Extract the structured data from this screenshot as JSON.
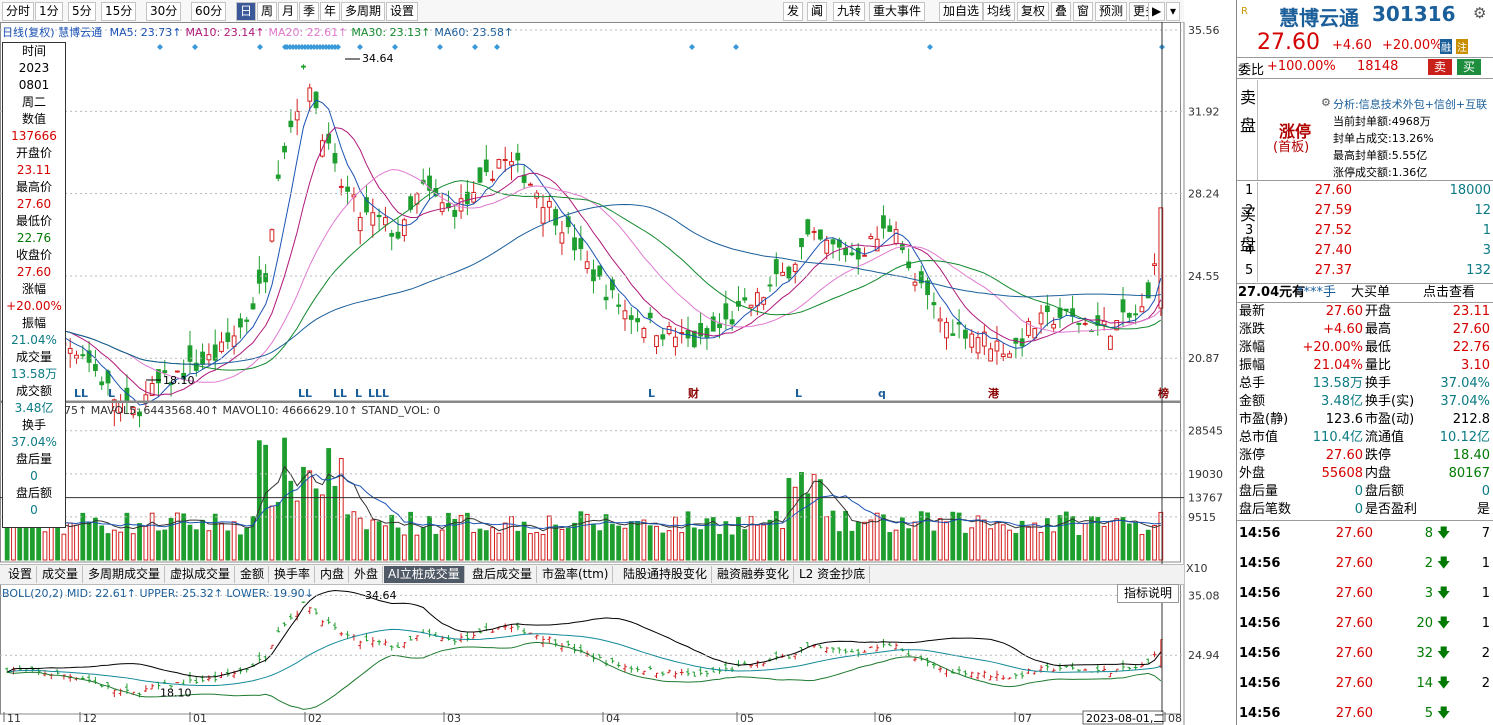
{
  "toolbar": {
    "left": [
      "分时",
      "1分",
      "5分",
      "15分",
      "30分",
      "60分",
      "日",
      "周",
      "月",
      "季",
      "年",
      "多周期",
      "设置"
    ],
    "right": [
      "发",
      "阗",
      "九转",
      "重大事件",
      "加自选",
      "均线",
      "复权",
      "叠",
      "窗",
      "预测",
      "更多"
    ]
  },
  "ma_legend": {
    "label": "日线(复权)",
    "stock": "慧博云通",
    "items": [
      {
        "text": "MA5: 23.73↑",
        "color": "#1a52b3"
      },
      {
        "text": "MA10: 23.14↑",
        "color": "#b0187a"
      },
      {
        "text": "MA20: 22.61↑",
        "color": "#e07ad0"
      },
      {
        "text": "MA30: 23.13↑",
        "color": "#138a2e"
      },
      {
        "text": "MA60: 23.58↑",
        "color": "#1b5f9a"
      }
    ]
  },
  "vol_legend": "75↑ MAVOL5: 6443568.40↑ MAVOL10: 4666629.10↑ STAND_VOL: 0",
  "boll_legend": "BOLL(20,2) MID: 22.61↑ UPPER: 25.32↑ LOWER: 19.90↓",
  "chart_data": [
    {
      "type": "candlestick",
      "title": "日线(复权) 慧博云通",
      "y_axis_ticks": [
        "35.56",
        "31.92",
        "28.24",
        "24.55",
        "20.87"
      ],
      "ylim": [
        19.0,
        35.56
      ],
      "x_axis_ticks": [
        "11",
        "12",
        "01",
        "02",
        "03",
        "04",
        "05",
        "06",
        "07",
        "08"
      ],
      "annotations": [
        "34.64",
        "18.10"
      ],
      "markers": [
        "LL",
        "L",
        "LL",
        "LL",
        "L",
        "LLL",
        "L",
        "财",
        "L",
        "q",
        "港",
        "榜"
      ],
      "last": {
        "date": "2023-08-01",
        "open": 23.11,
        "high": 27.6,
        "low": 22.76,
        "close": 27.6
      }
    },
    {
      "type": "bar",
      "title": "成交量",
      "y_axis_ticks": [
        "28545",
        "19030",
        "13767",
        "9515"
      ],
      "unit_label": "X10"
    },
    {
      "type": "line",
      "title": "BOLL(20,2)",
      "y_axis_ticks": [
        "35.08",
        "24.94"
      ],
      "series": [
        {
          "name": "MID",
          "last": 22.61
        },
        {
          "name": "UPPER",
          "last": 25.32
        },
        {
          "name": "LOWER",
          "last": 19.9
        }
      ],
      "annotations": [
        "34.64",
        "18.10"
      ],
      "x_axis_ticks": [
        "11",
        "12",
        "01",
        "02",
        "03",
        "04",
        "05",
        "06",
        "07",
        "08"
      ],
      "date_label": "2023-08-01,二"
    }
  ],
  "infobox": [
    {
      "t": "时间",
      "c": ""
    },
    {
      "t": "2023",
      "c": ""
    },
    {
      "t": "0801",
      "c": ""
    },
    {
      "t": "周二",
      "c": ""
    },
    {
      "t": "数值",
      "c": ""
    },
    {
      "t": "137666",
      "c": "red"
    },
    {
      "t": "开盘价",
      "c": ""
    },
    {
      "t": "23.11",
      "c": "red"
    },
    {
      "t": "最高价",
      "c": ""
    },
    {
      "t": "27.60",
      "c": "red"
    },
    {
      "t": "最低价",
      "c": ""
    },
    {
      "t": "22.76",
      "c": "green"
    },
    {
      "t": "收盘价",
      "c": ""
    },
    {
      "t": "27.60",
      "c": "red"
    },
    {
      "t": "涨幅",
      "c": ""
    },
    {
      "t": "+20.00%",
      "c": "red"
    },
    {
      "t": "振幅",
      "c": ""
    },
    {
      "t": "21.04%",
      "c": "teal"
    },
    {
      "t": "成交量",
      "c": ""
    },
    {
      "t": "13.58万",
      "c": "teal"
    },
    {
      "t": "成交额",
      "c": ""
    },
    {
      "t": "3.48亿",
      "c": "teal"
    },
    {
      "t": "换手",
      "c": ""
    },
    {
      "t": "37.04%",
      "c": "teal"
    },
    {
      "t": "盘后量",
      "c": ""
    },
    {
      "t": "0",
      "c": "teal"
    },
    {
      "t": "盘后额",
      "c": ""
    },
    {
      "t": "0",
      "c": "teal"
    }
  ],
  "tabs": [
    "设置",
    "成交量",
    "多周期成交量",
    "虚拟成交量",
    "金额",
    "换手率",
    "内盘",
    "外盘",
    "AI立桩成交量",
    "盘后成交量",
    "市盈率(ttm)",
    "陆股通持股变化",
    "融资融券变化",
    "L2 资金抄底"
  ],
  "help_button": "指标说明",
  "quote": {
    "name": "慧博云通",
    "code": "301316",
    "price": "27.60",
    "change": "+4.60",
    "pct": "+20.00%",
    "tag1": "融",
    "tag2": "注",
    "weibi_label": "委比",
    "weibi": "+100.00%",
    "weicha": "18148",
    "sell_btn": "卖",
    "buy_btn": "买",
    "sell_label": [
      "卖",
      "盘"
    ],
    "zt_label": "涨停",
    "zt_sub": "(首板)",
    "analysis": "分析:信息技术外包+信创+互联",
    "zt_info": [
      {
        "k": "当前封单额:",
        "v": "4968万"
      },
      {
        "k": "封单占成交:",
        "v": "13.26%"
      },
      {
        "k": "最高封单额:",
        "v": "5.55亿"
      },
      {
        "k": "涨停成交额:",
        "v": "1.36亿"
      }
    ],
    "buy_label": [
      "买",
      "盘"
    ],
    "bids": [
      {
        "lv": "1",
        "p": "27.60",
        "v": "18000"
      },
      {
        "lv": "2",
        "p": "27.59",
        "v": "12"
      },
      {
        "lv": "3",
        "p": "27.52",
        "v": "1"
      },
      {
        "lv": "4",
        "p": "27.40",
        "v": "3"
      },
      {
        "lv": "5",
        "p": "27.37",
        "v": "132"
      }
    ],
    "order_bar": [
      "27.04元有",
      "****手",
      "大买单",
      "点击查看"
    ],
    "stats": [
      {
        "k1": "最新",
        "v1": "27.60",
        "c1": "red",
        "k2": "开盘",
        "v2": "23.11",
        "c2": "red"
      },
      {
        "k1": "涨跌",
        "v1": "+4.60",
        "c1": "red",
        "k2": "最高",
        "v2": "27.60",
        "c2": "red"
      },
      {
        "k1": "涨幅",
        "v1": "+20.00%",
        "c1": "red",
        "k2": "最低",
        "v2": "22.76",
        "c2": "red"
      },
      {
        "k1": "振幅",
        "v1": "21.04%",
        "c1": "red",
        "k2": "量比",
        "v2": "3.10",
        "c2": "red"
      },
      {
        "k1": "总手",
        "v1": "13.58万",
        "c1": "teal",
        "k2": "换手",
        "v2": "37.04%",
        "c2": "teal"
      },
      {
        "k1": "金额",
        "v1": "3.48亿",
        "c1": "teal",
        "k2": "换手(实)",
        "v2": "37.04%",
        "c2": "teal"
      },
      {
        "k1": "市盈(静)",
        "v1": "123.6",
        "c1": "",
        "k2": "市盈(动)",
        "v2": "212.8",
        "c2": ""
      },
      {
        "k1": "总市值",
        "v1": "110.4亿",
        "c1": "teal",
        "k2": "流通值",
        "v2": "10.12亿",
        "c2": "teal"
      },
      {
        "k1": "涨停",
        "v1": "27.60",
        "c1": "red",
        "k2": "跌停",
        "v2": "18.40",
        "c2": "green"
      },
      {
        "k1": "外盘",
        "v1": "55608",
        "c1": "red",
        "k2": "内盘",
        "v2": "80167",
        "c2": "green"
      },
      {
        "k1": "盘后量",
        "v1": "0",
        "c1": "teal",
        "k2": "盘后额",
        "v2": "0",
        "c2": "teal"
      },
      {
        "k1": "盘后笔数",
        "v1": "0",
        "c1": "teal",
        "k2": "是否盈利",
        "v2": "是",
        "c2": ""
      }
    ],
    "ticks": [
      {
        "t": "14:56",
        "p": "27.60",
        "v": "8",
        "x": "7"
      },
      {
        "t": "14:56",
        "p": "27.60",
        "v": "2",
        "x": "1"
      },
      {
        "t": "14:56",
        "p": "27.60",
        "v": "3",
        "x": "1"
      },
      {
        "t": "14:56",
        "p": "27.60",
        "v": "20",
        "x": "1"
      },
      {
        "t": "14:56",
        "p": "27.60",
        "v": "32",
        "x": "2"
      },
      {
        "t": "14:56",
        "p": "27.60",
        "v": "14",
        "x": "2"
      },
      {
        "t": "14:56",
        "p": "27.60",
        "v": "5",
        "x": ""
      }
    ]
  }
}
